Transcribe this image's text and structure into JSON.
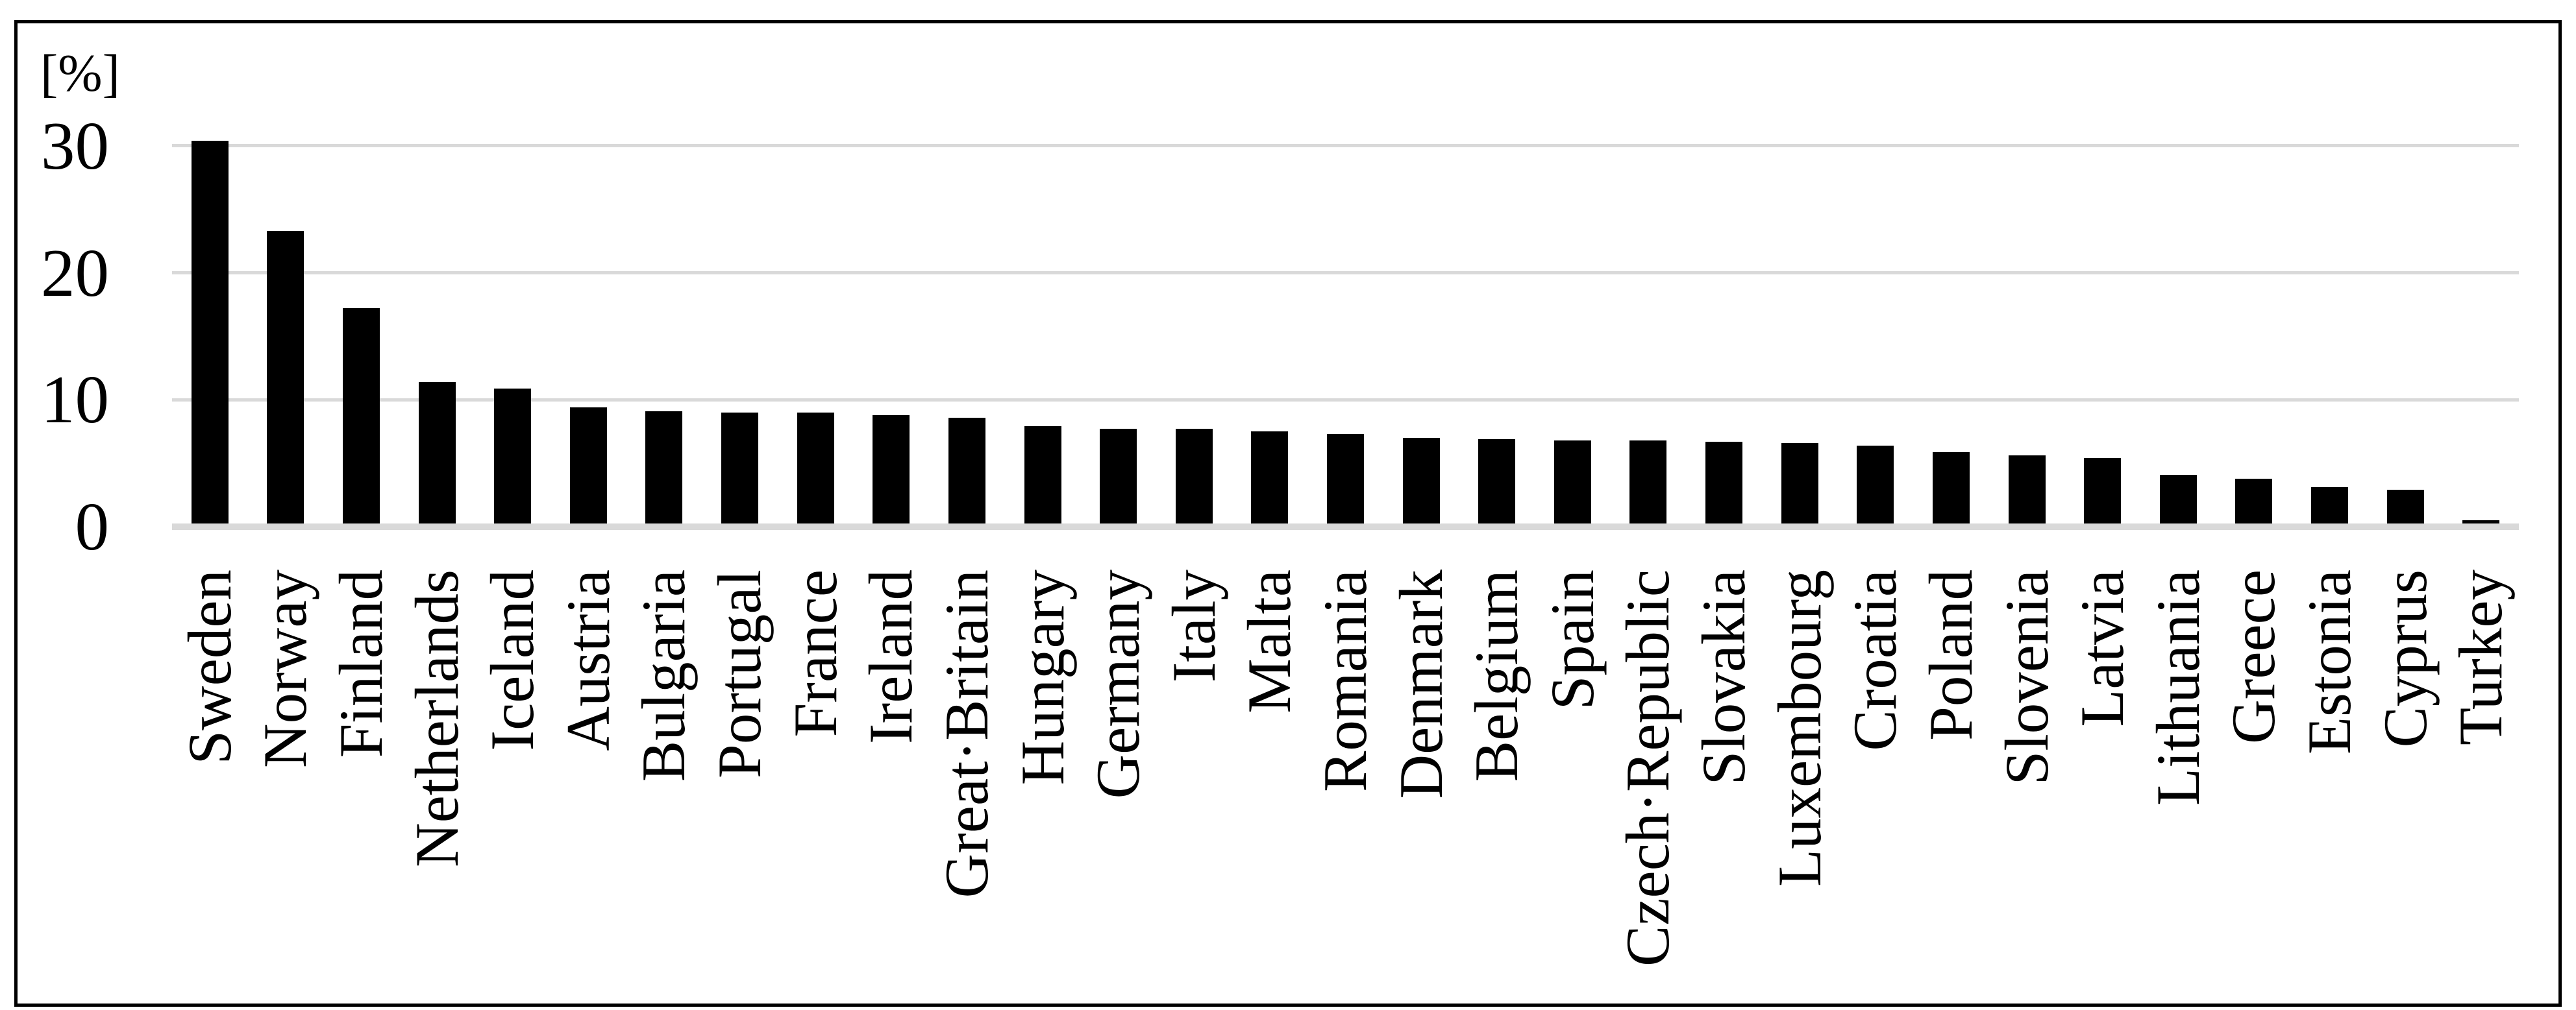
{
  "chart_data": {
    "type": "bar",
    "title": "",
    "ylabel": "[%]",
    "xlabel": "",
    "categories": [
      "Sweden",
      "Norway",
      "Finland",
      "Netherlands",
      "Iceland",
      "Austria",
      "Bulgaria",
      "Portugal",
      "France",
      "Ireland",
      "Great·Britain",
      "Hungary",
      "Germany",
      "Italy",
      "Malta",
      "Romania",
      "Denmark",
      "Belgium",
      "Spain",
      "Czech·Republic",
      "Slovakia",
      "Luxembourg",
      "Croatia",
      "Poland",
      "Slovenia",
      "Latvia",
      "Lithuania",
      "Greece",
      "Estonia",
      "Cyprus",
      "Turkey"
    ],
    "values": [
      30.4,
      23.3,
      17.2,
      11.4,
      10.9,
      9.4,
      9.1,
      9.0,
      9.0,
      8.8,
      8.6,
      7.9,
      7.7,
      7.7,
      7.5,
      7.3,
      7.0,
      6.9,
      6.8,
      6.8,
      6.7,
      6.6,
      6.4,
      5.9,
      5.6,
      5.4,
      4.1,
      3.8,
      3.1,
      2.9,
      0.5
    ],
    "yticks": [
      0,
      10,
      20,
      30
    ],
    "ylim": [
      0,
      32
    ],
    "grid": "horizontal",
    "legend_position": "none",
    "sort_order": "descending",
    "bar_color": "#000000",
    "gridline_color": "#d9d9d9",
    "frame_color": "#000000",
    "background_color": "#ffffff",
    "text_color": "#000000"
  }
}
